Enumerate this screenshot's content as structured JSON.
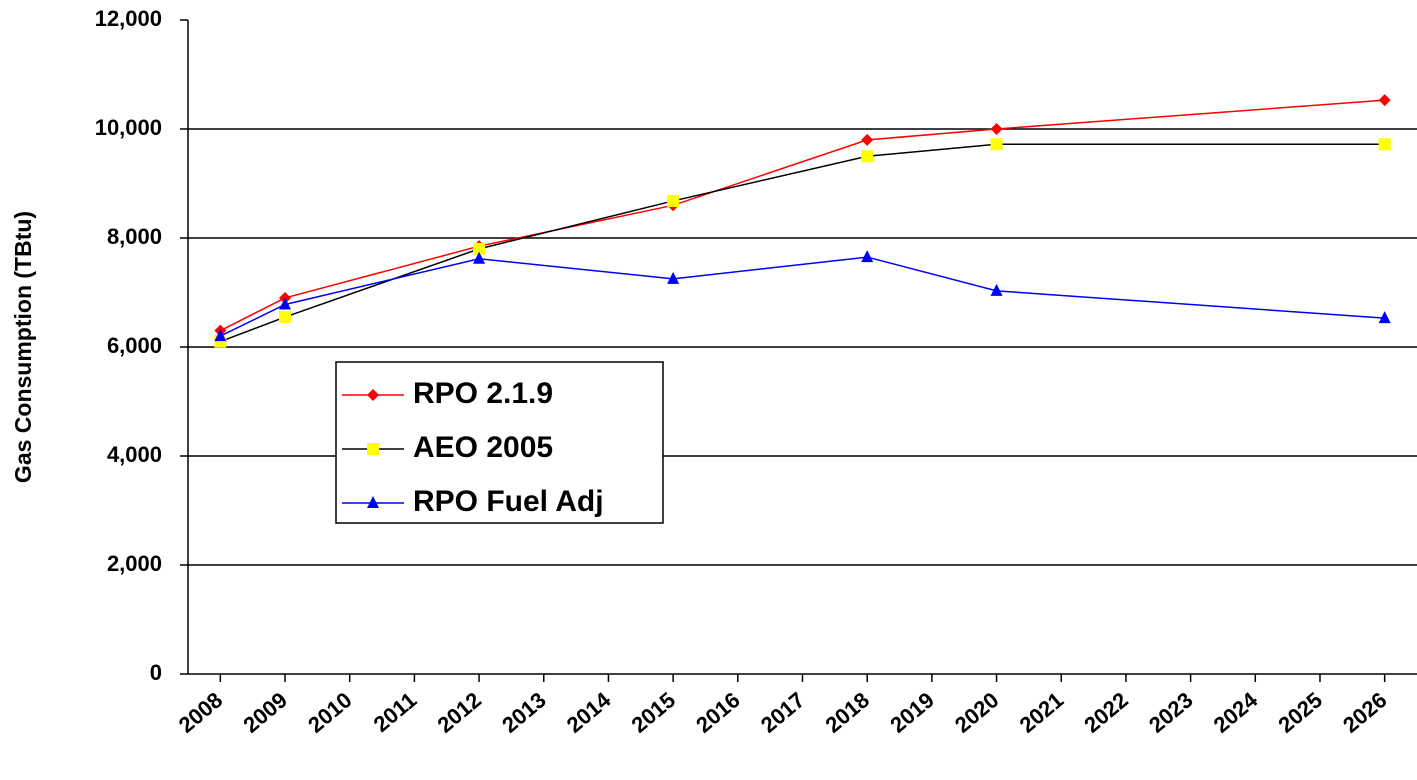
{
  "chart_data": {
    "type": "line",
    "y_label": "Gas Consumption (TBtu)",
    "x": [
      2008,
      2009,
      2012,
      2015,
      2018,
      2020,
      2026
    ],
    "xlim": [
      2007.5,
      2026.5
    ],
    "xticks": [
      2008,
      2009,
      2010,
      2011,
      2012,
      2013,
      2014,
      2015,
      2016,
      2017,
      2018,
      2019,
      2020,
      2021,
      2022,
      2023,
      2024,
      2025,
      2026
    ],
    "ylim": [
      0,
      12000
    ],
    "yticks": [
      0,
      {
        "value": 2000,
        "label": "2,000"
      },
      {
        "value": 4000,
        "label": "4,000"
      },
      {
        "value": 6000,
        "label": "6,000"
      },
      {
        "value": 8000,
        "label": "8,000"
      },
      {
        "value": 10000,
        "label": "10,000"
      },
      {
        "value": 12000,
        "label": "12,000"
      }
    ],
    "grid": true,
    "legend": "lower-left",
    "series": [
      {
        "name": "RPO 2.1.9",
        "color": "#ff0000",
        "marker_color": "#ff0000",
        "marker": "diamond",
        "values": [
          6300,
          6900,
          7850,
          8600,
          9800,
          10000,
          10530
        ]
      },
      {
        "name": "AEO 2005",
        "color": "#000000",
        "marker_color": "#ffff00",
        "marker": "square",
        "values": [
          6100,
          6550,
          7800,
          8680,
          9500,
          9720,
          9720
        ]
      },
      {
        "name": "RPO Fuel Adj",
        "color": "#0000ff",
        "marker_color": "#0000ff",
        "marker": "triangle",
        "values": [
          6200,
          6780,
          7620,
          7250,
          7650,
          7030,
          6530
        ]
      }
    ]
  }
}
